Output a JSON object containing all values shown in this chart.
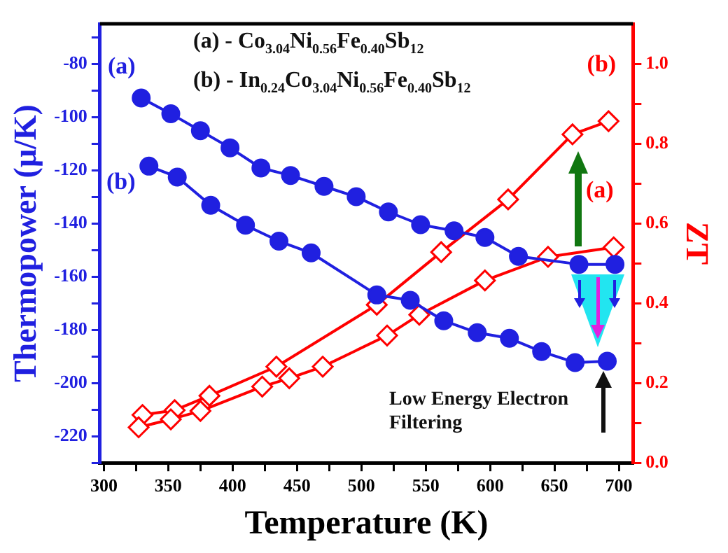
{
  "chart_data": {
    "type": "line",
    "xlabel": "Temperature (K)",
    "ylabel": "Thermopower (μ/K)",
    "y2label": "ZT",
    "xlim": [
      297,
      711
    ],
    "xticks": [
      300,
      {
        "value": 325,
        "label": null
      },
      350,
      {
        "value": 375,
        "label": null
      },
      400,
      {
        "value": 425,
        "label": null
      },
      450,
      {
        "value": 475,
        "label": null
      },
      500,
      {
        "value": 525,
        "label": null
      },
      550,
      {
        "value": 575,
        "label": null
      },
      600,
      {
        "value": 625,
        "label": null
      },
      650,
      {
        "value": 675,
        "label": null
      },
      700
    ],
    "ylim": [
      -230,
      -65
    ],
    "yticks": [
      {
        "value": -70,
        "label": null
      },
      -80,
      {
        "value": -90,
        "label": null
      },
      -100,
      {
        "value": -110,
        "label": null
      },
      -120,
      {
        "value": -130,
        "label": null
      },
      -140,
      {
        "value": -150,
        "label": null
      },
      -160,
      {
        "value": -170,
        "label": null
      },
      -180,
      {
        "value": -190,
        "label": null
      },
      -200,
      {
        "value": -210,
        "label": null
      },
      -220,
      {
        "value": -230,
        "label": null
      }
    ],
    "y2lim": [
      0,
      1.1
    ],
    "y2ticks": [
      {
        "value": 0,
        "label": "0.0"
      },
      {
        "value": 0.1,
        "label": null
      },
      0.2,
      {
        "value": 0.3,
        "label": null
      },
      0.4,
      {
        "value": 0.5,
        "label": null
      },
      0.6,
      {
        "value": 0.7,
        "label": null
      },
      0.8,
      {
        "value": 0.9,
        "label": null
      },
      {
        "value": 1,
        "label": "1.0"
      }
    ],
    "grid": false,
    "legend": false,
    "line_style": "solid",
    "series": [
      {
        "name": "(a)",
        "color": "#2020e0",
        "marker": "circle",
        "x": [
          329,
          352,
          375,
          398,
          422,
          445,
          471,
          496,
          521,
          546,
          572,
          596,
          622,
          669,
          697
        ],
        "values": [
          -92.9,
          -98.8,
          -105.2,
          -111.6,
          -119.2,
          -122,
          -126.1,
          -130,
          -135.7,
          -140.5,
          -142.8,
          -145.3,
          -152.4,
          -155.4,
          -155.4
        ]
      },
      {
        "name": "(b)",
        "color": "#2020e0",
        "marker": "circle",
        "x": [
          335,
          357,
          383,
          410,
          436,
          461,
          512,
          538,
          564,
          590,
          615,
          640,
          666,
          691
        ],
        "values": [
          -118.5,
          -122.6,
          -133.2,
          -140.7,
          -146.7,
          -151.1,
          -166.9,
          -168.9,
          -176.6,
          -181.1,
          -183.2,
          -188.2,
          -192.3,
          -191.8
        ]
      },
      {
        "name": "(a)",
        "color": "#ff0000",
        "marker": "diamond",
        "axis": "y2",
        "x": [
          327,
          352,
          375,
          423,
          444,
          470,
          520,
          545,
          596,
          645,
          696
        ],
        "values": [
          0.089,
          0.109,
          0.13,
          0.191,
          0.212,
          0.241,
          0.319,
          0.371,
          0.457,
          0.516,
          0.54
        ]
      },
      {
        "name": "(b)",
        "color": "#ff0000",
        "marker": "diamond",
        "axis": "y2",
        "x": [
          330,
          355,
          382,
          434,
          512,
          562,
          614,
          664,
          692
        ],
        "values": [
          0.12,
          0.132,
          0.168,
          0.241,
          0.396,
          0.528,
          0.66,
          0.823,
          0.856
        ]
      }
    ],
    "annotations": [
      "(a) - Co$_{3.04}$Ni$_{0.56}$Fe$_{0.40}$Sb$_{12}$",
      "(b) - In$_{0.24}$Co$_{3.04}$Ni$_{0.56}$Fe$_{0.40}$Sb$_{12}$",
      "Low Energy Electron Filtering"
    ]
  }
}
